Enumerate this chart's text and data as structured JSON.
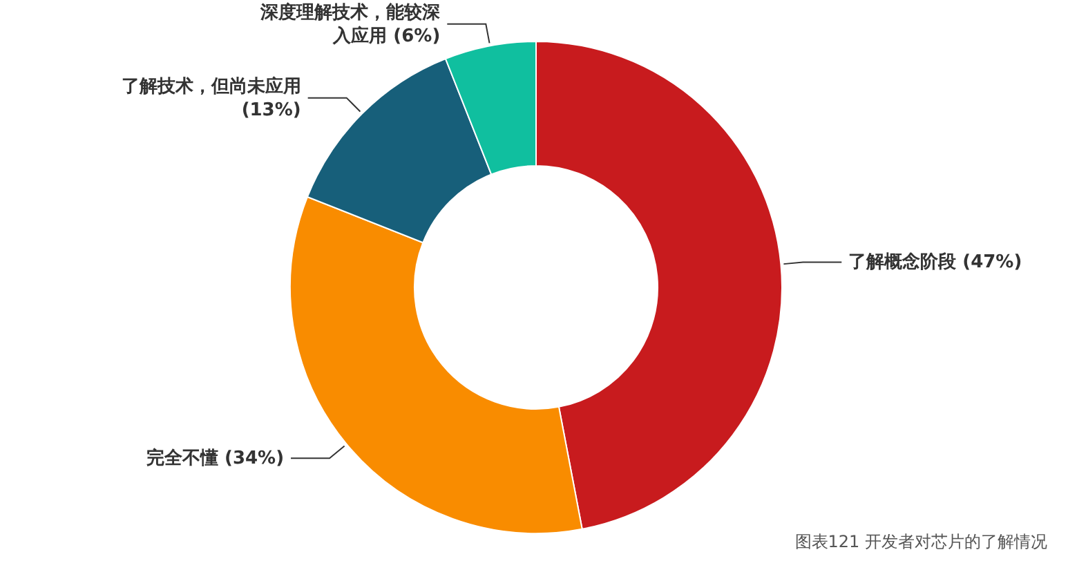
{
  "chart_data": {
    "type": "donut",
    "categories": [
      "了解概念阶段",
      "完全不懂",
      "了解技术，但尚未应用",
      "深度理解技术，能较深入应用"
    ],
    "values": [
      47,
      34,
      13,
      6
    ],
    "value_labels": [
      "(47%)",
      "(34%)",
      "(13%)",
      "(6%)"
    ],
    "colors": [
      "#c81b1e",
      "#f98c00",
      "#175f7a",
      "#10bf9f"
    ],
    "annotations": [
      "图表121 开发者对芯片的了解情况"
    ]
  }
}
